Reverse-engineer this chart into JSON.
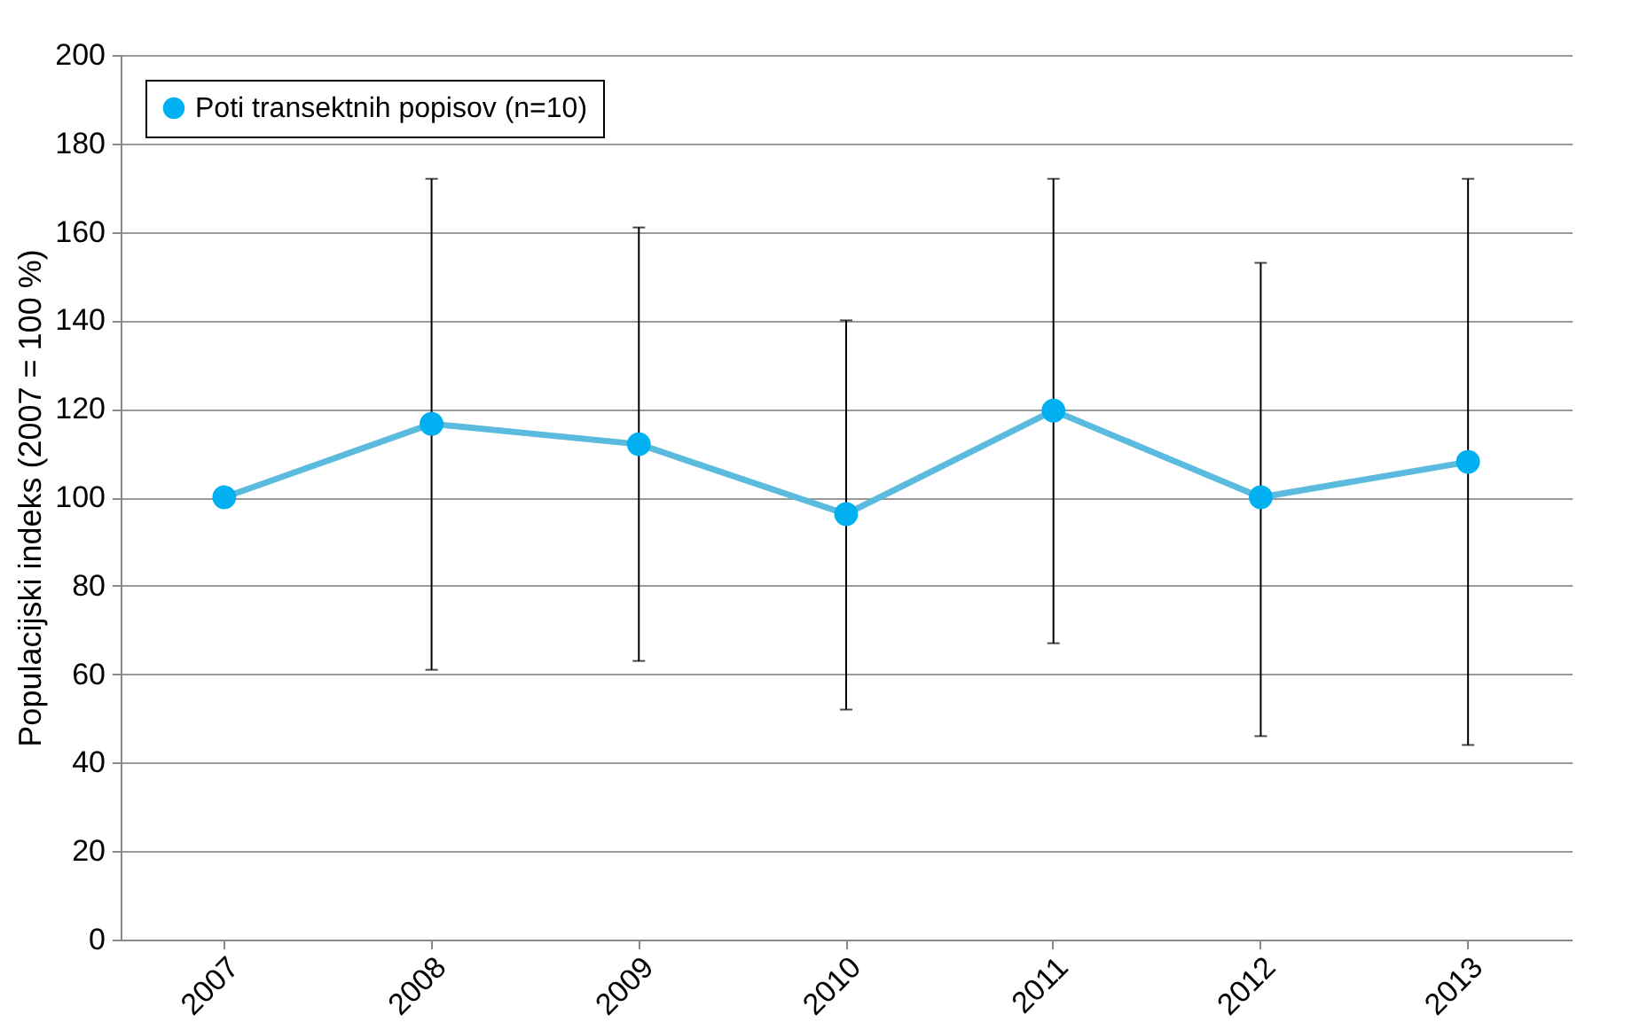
{
  "chart_data": {
    "type": "line",
    "ylabel": "Populacijski indeks (2007 = 100 %)",
    "categories": [
      "2007",
      "2008",
      "2009",
      "2010",
      "2011",
      "2012",
      "2013"
    ],
    "series": [
      {
        "name": "Poti transektnih popisov (n=10)",
        "color": "#00b0f0",
        "values": [
          100,
          116.6,
          112,
          96.2,
          119.6,
          100,
          108
        ],
        "errors": [
          null,
          [
            61,
            172
          ],
          [
            63,
            161
          ],
          [
            52,
            140
          ],
          [
            67,
            172
          ],
          [
            46,
            153
          ],
          [
            44,
            172
          ]
        ]
      }
    ],
    "ylim": [
      0,
      200
    ],
    "yticks": [
      0,
      20,
      40,
      60,
      80,
      100,
      120,
      140,
      160,
      180,
      200
    ],
    "grid": "y",
    "legend": "top left",
    "marker": "circle",
    "line_style": "solid"
  }
}
